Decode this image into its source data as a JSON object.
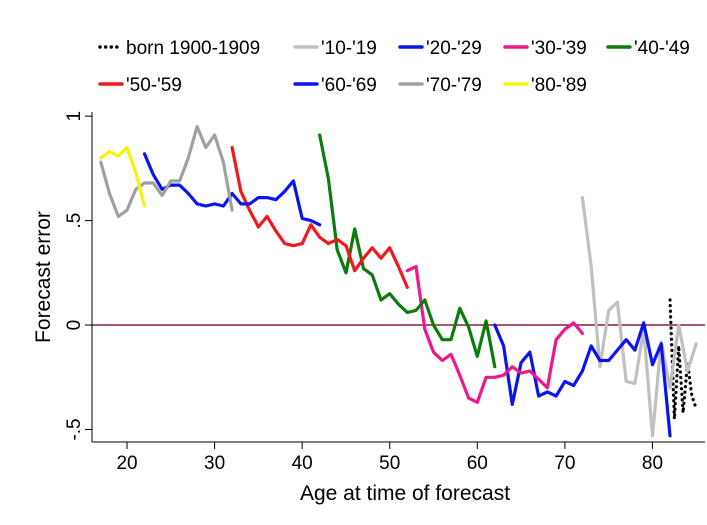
{
  "chart_data": {
    "type": "line",
    "title": "",
    "xlabel": "Age at time of forecast",
    "ylabel": "Forecast error",
    "xlim": [
      16,
      86
    ],
    "ylim": [
      -0.56,
      1.02
    ],
    "xticks": [
      20,
      30,
      40,
      50,
      60,
      70,
      80
    ],
    "xtick_labels": [
      "20",
      "30",
      "40",
      "50",
      "60",
      "70",
      "80"
    ],
    "yticks": [
      -0.5,
      0,
      0.5,
      1
    ],
    "ytick_labels": [
      "-.5",
      "0",
      ".5",
      "1"
    ],
    "reference_line": {
      "y": 0,
      "color": "#8b1a3a"
    },
    "grid": false,
    "legend_position": "top",
    "series": [
      {
        "name": "born 1900-1909",
        "color": "#000000",
        "dash": "dotted",
        "x": [
          82,
          82.5,
          83,
          83.5,
          84,
          84.5,
          85
        ],
        "y": [
          0.12,
          -0.45,
          -0.1,
          -0.42,
          -0.18,
          -0.34,
          -0.4
        ]
      },
      {
        "name": "'10-'19",
        "color": "#c0c0c0",
        "dash": "solid",
        "x": [
          72,
          73,
          74,
          75,
          76,
          77,
          78,
          79,
          80,
          81,
          82,
          83,
          84,
          85
        ],
        "y": [
          0.61,
          0.28,
          -0.2,
          0.07,
          0.11,
          -0.27,
          -0.28,
          -0.02,
          -0.53,
          -0.08,
          -0.3,
          0.0,
          -0.22,
          -0.09
        ]
      },
      {
        "name": "'20-'29",
        "color": "#0a14f0",
        "dash": "solid",
        "x": [
          62,
          63,
          64,
          65,
          66,
          67,
          68,
          69,
          70,
          71,
          72,
          73,
          74,
          75,
          76,
          77,
          78,
          79,
          80,
          81,
          82
        ],
        "y": [
          0.0,
          -0.1,
          -0.38,
          -0.18,
          -0.13,
          -0.34,
          -0.32,
          -0.34,
          -0.27,
          -0.29,
          -0.22,
          -0.1,
          -0.17,
          -0.17,
          -0.12,
          -0.07,
          -0.12,
          0.01,
          -0.19,
          -0.09,
          -0.53
        ]
      },
      {
        "name": "'30-'39",
        "color": "#f0168c",
        "dash": "solid",
        "x": [
          52,
          53,
          54,
          55,
          56,
          57,
          58,
          59,
          60,
          61,
          62,
          63,
          64,
          65,
          66,
          67,
          68,
          69,
          70,
          71,
          72
        ],
        "y": [
          0.26,
          0.28,
          -0.02,
          -0.13,
          -0.17,
          -0.14,
          -0.24,
          -0.35,
          -0.37,
          -0.25,
          -0.25,
          -0.24,
          -0.2,
          -0.23,
          -0.22,
          -0.26,
          -0.3,
          -0.07,
          -0.02,
          0.01,
          -0.04
        ]
      },
      {
        "name": "'40-'49",
        "color": "#0d7a0d",
        "dash": "solid",
        "x": [
          42,
          43,
          44,
          45,
          46,
          47,
          48,
          49,
          50,
          51,
          52,
          53,
          54,
          55,
          56,
          57,
          58,
          59,
          60,
          61,
          62
        ],
        "y": [
          0.91,
          0.7,
          0.36,
          0.25,
          0.46,
          0.27,
          0.24,
          0.12,
          0.15,
          0.1,
          0.06,
          0.07,
          0.12,
          0.0,
          -0.07,
          -0.07,
          0.08,
          -0.01,
          -0.15,
          0.02,
          -0.2
        ]
      },
      {
        "name": "'50-'59",
        "color": "#f01a1a",
        "dash": "solid",
        "x": [
          32,
          33,
          34,
          35,
          36,
          37,
          38,
          39,
          40,
          41,
          42,
          43,
          44,
          45,
          46,
          47,
          48,
          49,
          50,
          51,
          52
        ],
        "y": [
          0.85,
          0.64,
          0.55,
          0.47,
          0.52,
          0.45,
          0.39,
          0.38,
          0.39,
          0.48,
          0.42,
          0.39,
          0.41,
          0.38,
          0.26,
          0.32,
          0.37,
          0.32,
          0.37,
          0.28,
          0.18
        ]
      },
      {
        "name": "'60-'69",
        "color": "#0a14f0",
        "dash": "solid",
        "x": [
          22,
          23,
          24,
          25,
          26,
          27,
          28,
          29,
          30,
          31,
          32,
          33,
          34,
          35,
          36,
          37,
          38,
          39,
          40,
          41,
          42
        ],
        "y": [
          0.82,
          0.72,
          0.65,
          0.67,
          0.67,
          0.63,
          0.58,
          0.57,
          0.58,
          0.57,
          0.63,
          0.58,
          0.58,
          0.61,
          0.61,
          0.6,
          0.64,
          0.69,
          0.51,
          0.5,
          0.48
        ]
      },
      {
        "name": "'70-'79",
        "color": "#a0a0a0",
        "dash": "solid",
        "x": [
          17,
          18,
          19,
          20,
          21,
          22,
          23,
          24,
          25,
          26,
          27,
          28,
          29,
          30,
          31,
          32
        ],
        "y": [
          0.78,
          0.63,
          0.52,
          0.55,
          0.65,
          0.68,
          0.68,
          0.62,
          0.69,
          0.69,
          0.8,
          0.95,
          0.85,
          0.91,
          0.78,
          0.55
        ]
      },
      {
        "name": "'80-'89",
        "color": "#f5f50a",
        "dash": "solid",
        "x": [
          17,
          18,
          19,
          20,
          21,
          22
        ],
        "y": [
          0.8,
          0.83,
          0.81,
          0.85,
          0.73,
          0.57
        ]
      }
    ]
  }
}
